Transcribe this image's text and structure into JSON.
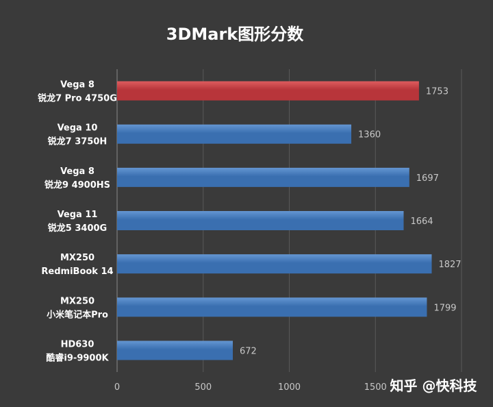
{
  "chart_data": {
    "type": "bar",
    "orientation": "horizontal",
    "title": "3DMark图形分数",
    "categories": [
      [
        "Vega 8",
        "锐龙7 Pro 4750G"
      ],
      [
        "Vega 10",
        "锐龙7 3750H"
      ],
      [
        "Vega 8",
        "锐龙9 4900HS"
      ],
      [
        "Vega 11",
        "锐龙5 3400G"
      ],
      [
        "MX250",
        "RedmiBook 14"
      ],
      [
        "MX250",
        "小米笔记本Pro"
      ],
      [
        "HD630",
        "酷睿i9-9900K"
      ]
    ],
    "values": [
      1753,
      1360,
      1697,
      1664,
      1827,
      1799,
      672
    ],
    "value_labels": [
      "1753",
      "1360",
      "1697",
      "1664",
      "1827",
      "1799",
      "672"
    ],
    "highlight_index": 0,
    "xlim": [
      0,
      2000
    ],
    "xticks": [
      0,
      500,
      1000,
      1500
    ],
    "xtick_labels": [
      "0",
      "500",
      "1000",
      "1500"
    ],
    "grid": "vertical",
    "xlabel": "",
    "ylabel": ""
  },
  "watermark": "知乎 @快科技",
  "colors": {
    "background": "#3a3a3a",
    "bar": "#3a6fb0",
    "bar_light": "#6496d2",
    "highlight": "#b8353a",
    "highlight_light": "#de5c5e",
    "grid": "#595959",
    "axis": "#8a8a8a"
  }
}
